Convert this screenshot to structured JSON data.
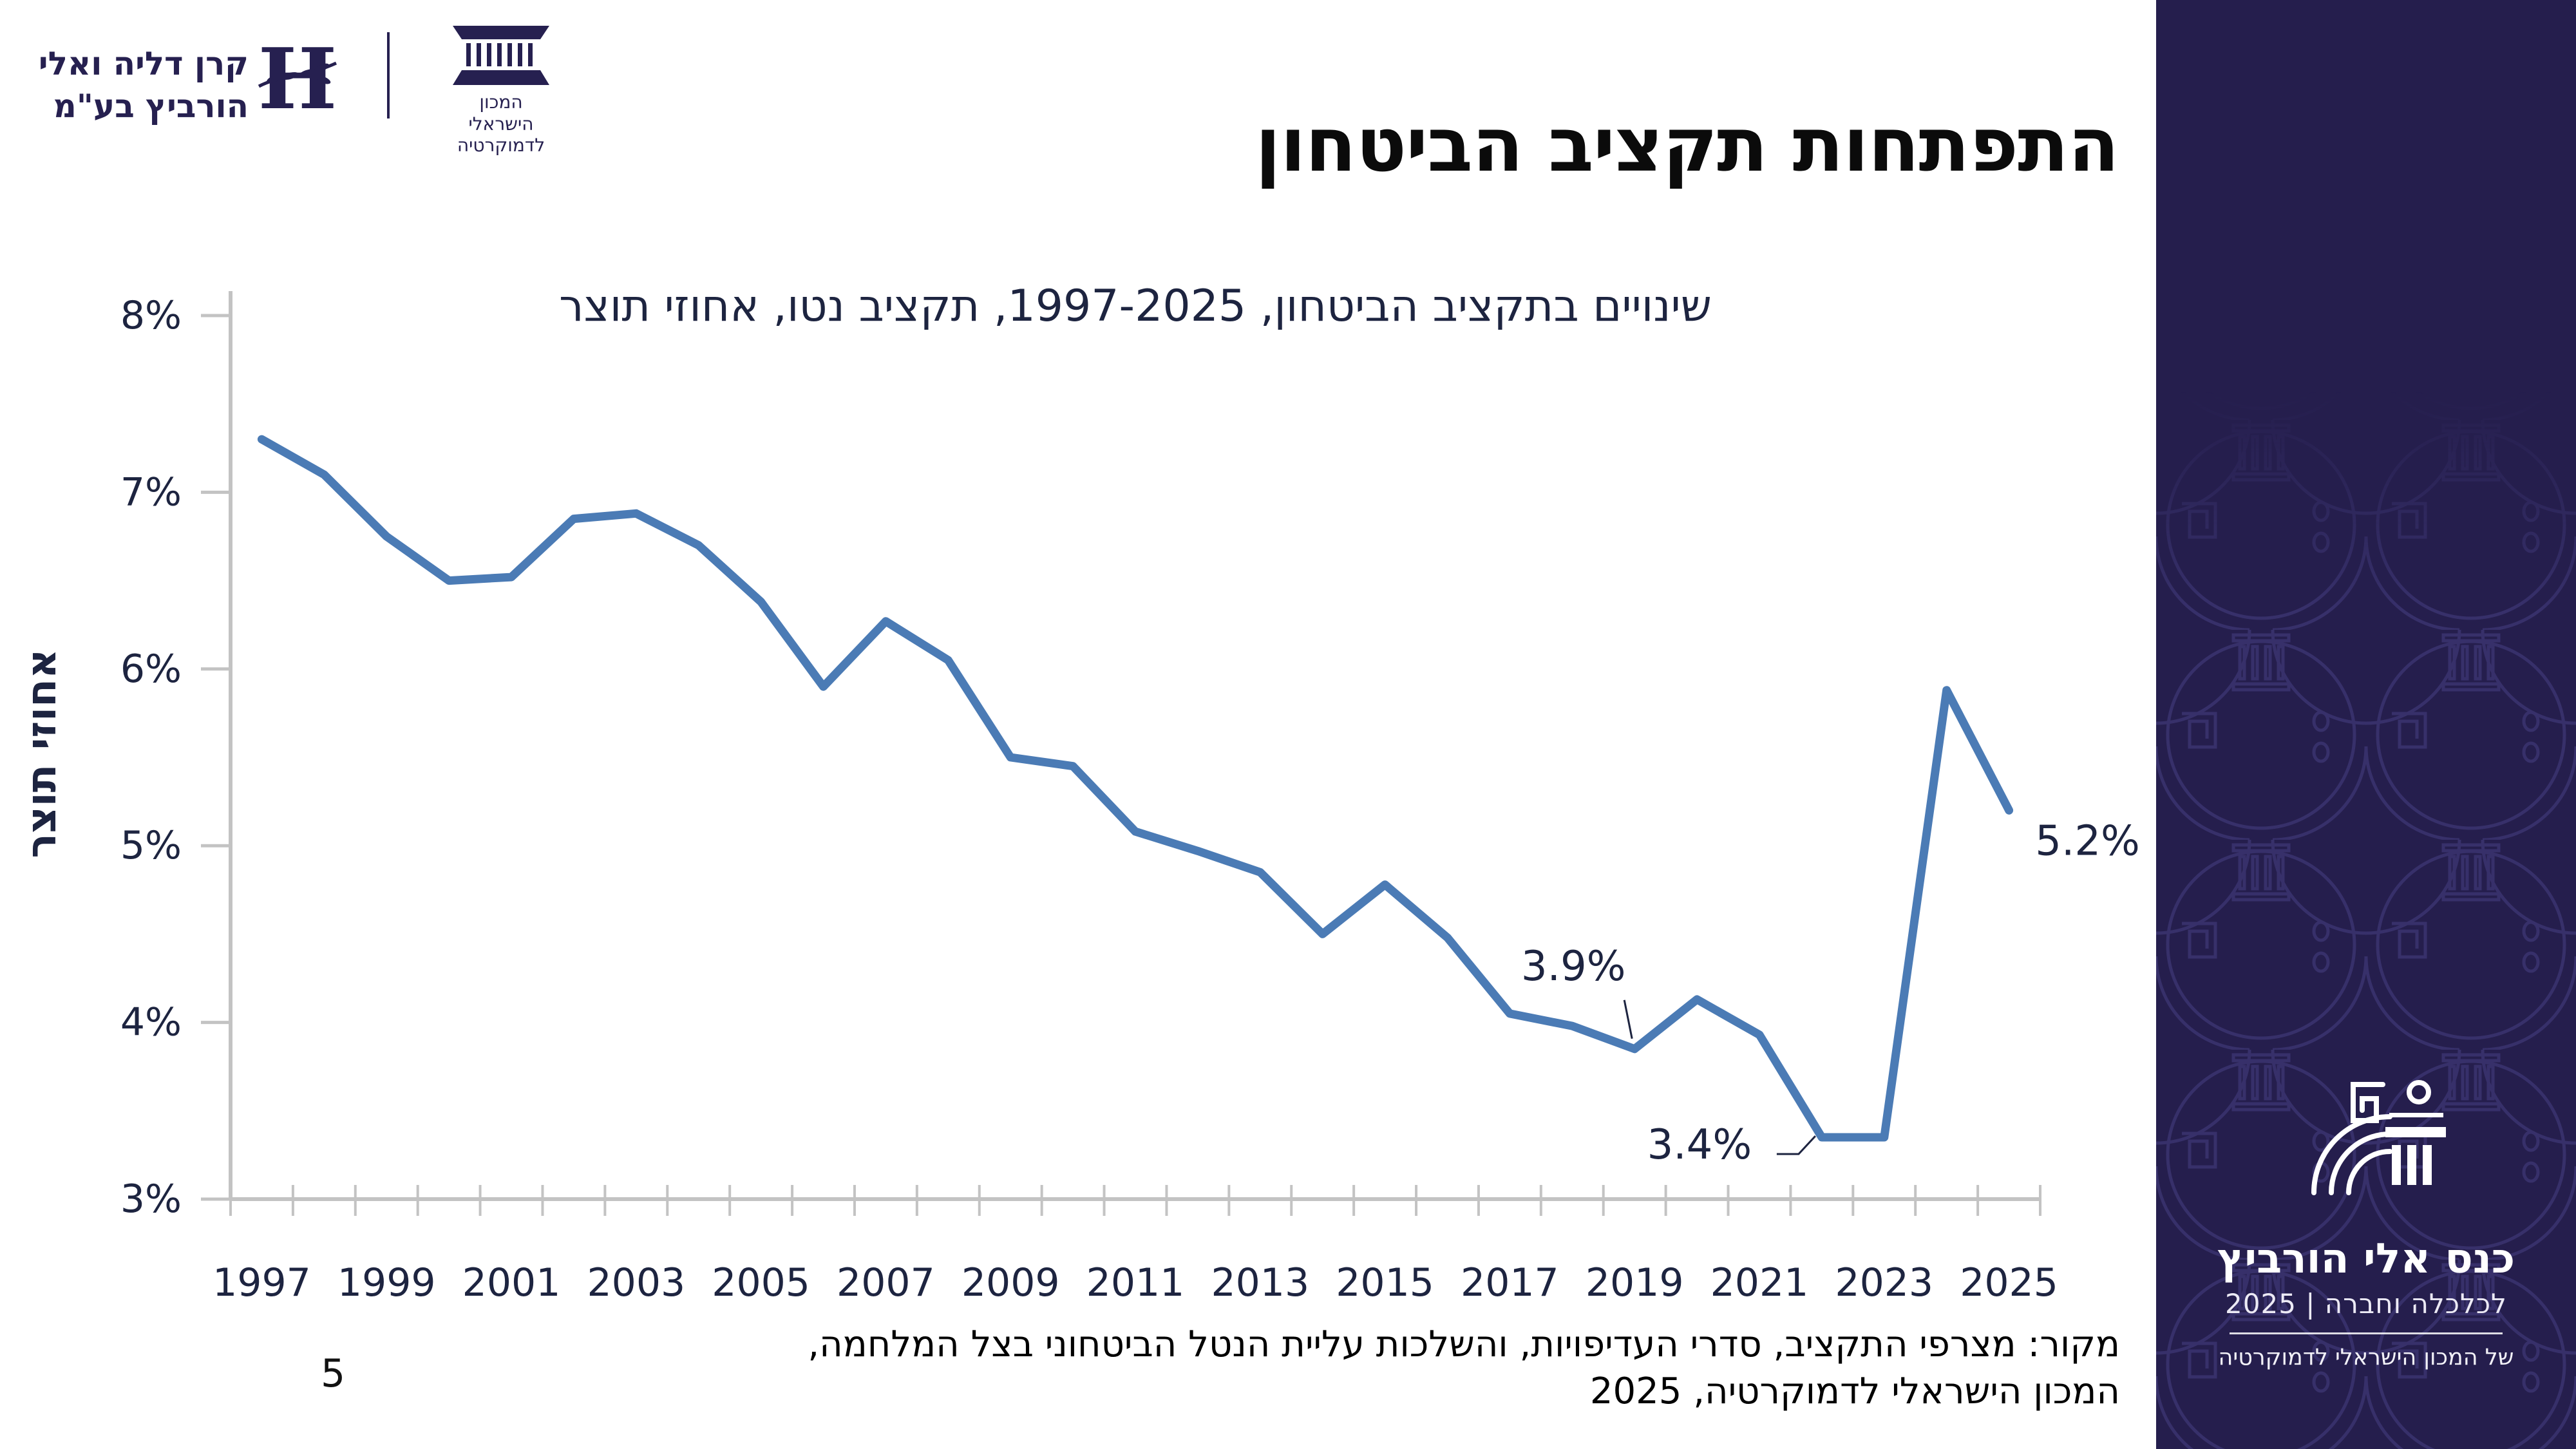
{
  "title": "התפתחות תקציב הביטחון",
  "header": {
    "foundation_logo": {
      "name_line1": "קרן דליה ואלי",
      "name_line2": "הורביץ בע\"מ",
      "monogram": "H"
    },
    "idi_logo": {
      "name_line1": "המכון הישראלי",
      "name_line2": "לדמוקרטיה"
    }
  },
  "chart_data": {
    "type": "line",
    "title": "שינויים בתקציב הביטחון, 1997-2025, תקציב נטו, אחוזי תוצר",
    "ylabel": "אחוזי תוצר",
    "ylim": [
      3,
      8
    ],
    "x": [
      1997,
      1998,
      1999,
      2000,
      2001,
      2002,
      2003,
      2004,
      2005,
      2006,
      2007,
      2008,
      2009,
      2010,
      2011,
      2012,
      2013,
      2014,
      2015,
      2016,
      2017,
      2018,
      2019,
      2020,
      2021,
      2022,
      2023,
      2024,
      2025
    ],
    "values": [
      7.3,
      7.1,
      6.75,
      6.5,
      6.52,
      6.85,
      6.88,
      6.7,
      6.38,
      5.9,
      6.27,
      6.05,
      5.5,
      5.45,
      5.08,
      4.97,
      4.85,
      4.5,
      4.78,
      4.48,
      4.05,
      3.98,
      3.85,
      4.13,
      3.93,
      3.35,
      3.35,
      5.88,
      5.2
    ],
    "ytick_values": [
      3,
      4,
      5,
      6,
      7,
      8
    ],
    "ytick_labels": [
      "3%",
      "4%",
      "5%",
      "6%",
      "7%",
      "8%"
    ],
    "xtick_years": [
      1997,
      1999,
      2001,
      2003,
      2005,
      2007,
      2009,
      2011,
      2013,
      2015,
      2017,
      2019,
      2021,
      2023,
      2025
    ],
    "grid": false,
    "legend": "none",
    "line_color": "#4b7bb5",
    "axis_color": "#c3c3c3",
    "label_color": "#1d2440",
    "annotations": [
      {
        "label": "3.9%",
        "year": 2019,
        "offset": [
          -95,
          -128
        ],
        "leader": [
          [
            -16,
            -76
          ],
          [
            -4,
            -16
          ]
        ]
      },
      {
        "label": "3.4%",
        "year": 2022,
        "offset": [
          -190,
          12
        ],
        "leader": [
          [
            -70,
            26
          ],
          [
            -36,
            26
          ],
          [
            -10,
            -2
          ]
        ]
      },
      {
        "label": "5.2%",
        "year": 2025,
        "offset": [
          122,
          48
        ]
      }
    ]
  },
  "source": {
    "line1": "מקור: מצרפי התקציב, סדרי העדיפויות, והשלכות עליית הנטל הביטחוני בצל המלחמה,",
    "line2": "המכון הישראלי לדמוקרטיה, 2025"
  },
  "page_number": "5",
  "sidebar": {
    "conference_title": "כנס אלי הורביץ",
    "conference_subtitle": "לכלכלה וחברה | 2025",
    "conference_institute": "של המכון הישראלי לדמוקרטיה",
    "background_color": "#251e4d"
  }
}
